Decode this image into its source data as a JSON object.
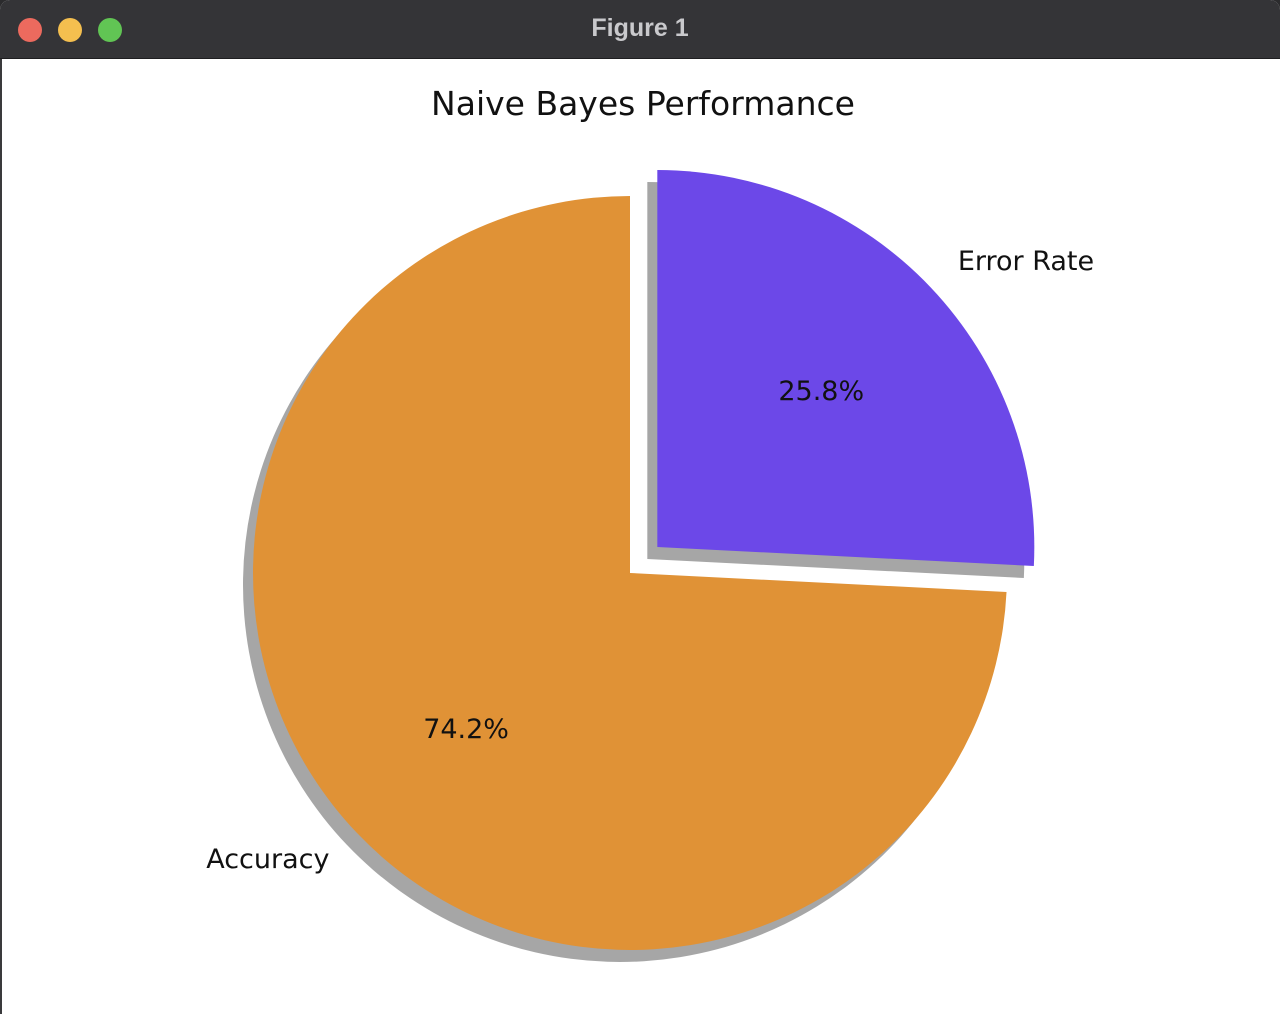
{
  "window": {
    "title": "Figure 1",
    "buttons": {
      "close_color": "#ec6a5e",
      "minimize_color": "#f4bf4f",
      "maximize_color": "#61c554"
    }
  },
  "chart_data": {
    "type": "pie",
    "title": "Naive Bayes Performance",
    "categories": [
      "Accuracy",
      "Error Rate"
    ],
    "values": [
      74.2,
      25.8
    ],
    "value_labels": [
      "74.2%",
      "25.8%"
    ],
    "colors": [
      "#e09236",
      "#6c48e8"
    ],
    "explode": [
      0,
      0.1
    ],
    "shadow": true,
    "start_angle_deg": 90,
    "direction": "counterclockwise"
  }
}
